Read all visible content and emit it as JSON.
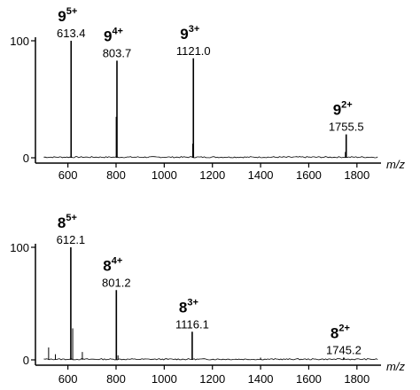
{
  "chart_data": [
    {
      "type": "line",
      "title": "",
      "xlabel": "m/z",
      "ylabel": "",
      "xlim": [
        480,
        1900
      ],
      "ylim": [
        0,
        100
      ],
      "x_ticks": [
        600,
        800,
        1000,
        1200,
        1400,
        1600,
        1800
      ],
      "y_ticks": [
        0,
        100
      ],
      "grid": false,
      "peaks": [
        {
          "mz": 613.4,
          "intensity": 100,
          "label": "613.4",
          "ion": "9",
          "charge": "5+"
        },
        {
          "mz": 803.7,
          "intensity": 83,
          "label": "803.7",
          "ion": "9",
          "charge": "4+"
        },
        {
          "mz": 1121.0,
          "intensity": 85,
          "label": "1121.0",
          "ion": "9",
          "charge": "3+"
        },
        {
          "mz": 1755.5,
          "intensity": 20,
          "label": "1755.5",
          "ion": "9",
          "charge": "2+"
        }
      ],
      "minor_peaks": [
        {
          "mz": 800.5,
          "intensity": 35
        },
        {
          "mz": 1118.0,
          "intensity": 12
        },
        {
          "mz": 1752.0,
          "intensity": 5
        }
      ]
    },
    {
      "type": "line",
      "title": "",
      "xlabel": "m/z",
      "ylabel": "",
      "xlim": [
        480,
        1900
      ],
      "ylim": [
        0,
        100
      ],
      "x_ticks": [
        600,
        800,
        1000,
        1200,
        1400,
        1600,
        1800
      ],
      "y_ticks": [
        0,
        100
      ],
      "grid": false,
      "peaks": [
        {
          "mz": 612.1,
          "intensity": 100,
          "label": "612.1",
          "ion": "8",
          "charge": "5+"
        },
        {
          "mz": 801.2,
          "intensity": 62,
          "label": "801.2",
          "ion": "8",
          "charge": "4+"
        },
        {
          "mz": 1116.1,
          "intensity": 25,
          "label": "1116.1",
          "ion": "8",
          "charge": "3+"
        },
        {
          "mz": 1745.2,
          "intensity": 2,
          "label": "1745.2",
          "ion": "8",
          "charge": "2+"
        }
      ],
      "minor_peaks": [
        {
          "mz": 520,
          "intensity": 11
        },
        {
          "mz": 548,
          "intensity": 5
        },
        {
          "mz": 620,
          "intensity": 28
        },
        {
          "mz": 660,
          "intensity": 7
        },
        {
          "mz": 808,
          "intensity": 4
        },
        {
          "mz": 1400,
          "intensity": 2
        }
      ]
    }
  ]
}
